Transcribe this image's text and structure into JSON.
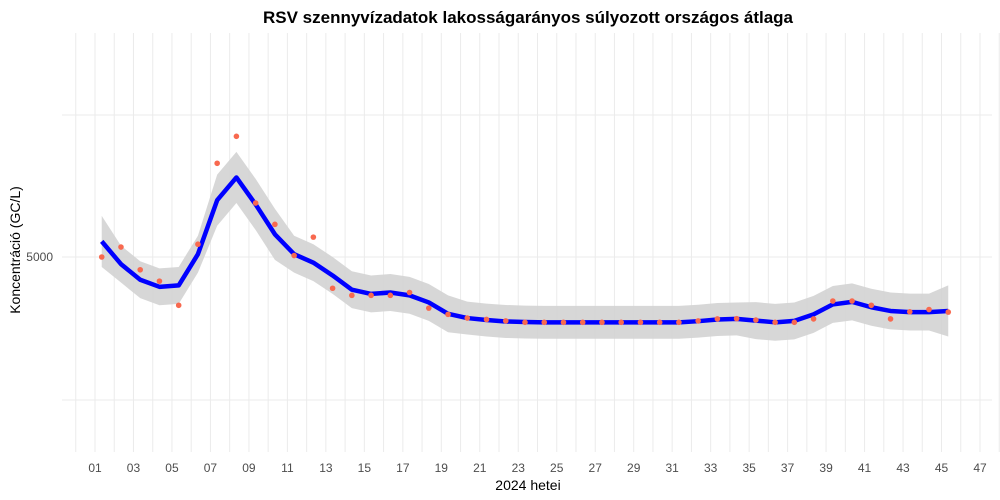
{
  "chart_data": {
    "type": "line",
    "title": "RSV szennyvízadatok lakosságarányos súlyozott országos átlaga",
    "xlabel": "2024 hetei",
    "ylabel": "Koncentráció (GC/L)",
    "x_ticks": [
      "01",
      "03",
      "05",
      "07",
      "09",
      "11",
      "13",
      "15",
      "17",
      "19",
      "21",
      "23",
      "25",
      "27",
      "29",
      "31",
      "33",
      "35",
      "37",
      "39",
      "41",
      "43",
      "45",
      "47"
    ],
    "y_ticks": [
      {
        "label": "5000",
        "value": 5000
      }
    ],
    "grid": true,
    "legend": null,
    "colors": {
      "points": "#F8694F",
      "smooth": "#0000FF",
      "ribbon": "#D3D3D3"
    },
    "points": {
      "x": [
        1,
        2,
        3,
        4,
        5,
        6,
        7,
        8,
        9,
        10,
        11,
        12,
        13,
        14,
        15,
        16,
        17,
        18,
        19,
        20,
        21,
        22,
        23,
        24,
        25,
        26,
        27,
        28,
        29,
        30,
        31,
        32,
        33,
        34,
        35,
        36,
        37,
        38,
        39,
        40,
        41,
        42,
        43,
        44,
        45
      ],
      "y": [
        5000,
        5350,
        4550,
        4150,
        3300,
        5450,
        8300,
        9250,
        6900,
        6150,
        5050,
        5700,
        3900,
        3650,
        3650,
        3650,
        3750,
        3200,
        2980,
        2850,
        2800,
        2750,
        2700,
        2700,
        2700,
        2700,
        2700,
        2700,
        2700,
        2700,
        2700,
        2750,
        2820,
        2830,
        2780,
        2700,
        2700,
        2820,
        3450,
        3450,
        3300,
        2820,
        3070,
        3150,
        3060
      ]
    },
    "smooth": {
      "x": [
        1,
        2,
        3,
        4,
        5,
        6,
        7,
        8,
        9,
        10,
        11,
        12,
        13,
        14,
        15,
        16,
        17,
        18,
        19,
        20,
        21,
        22,
        23,
        24,
        25,
        26,
        27,
        28,
        29,
        30,
        31,
        32,
        33,
        34,
        35,
        36,
        37,
        38,
        39,
        40,
        41,
        42,
        43,
        44,
        45
      ],
      "y": [
        5550,
        4750,
        4200,
        3950,
        4000,
        5100,
        7000,
        7800,
        6850,
        5800,
        5100,
        4800,
        4350,
        3850,
        3700,
        3750,
        3650,
        3400,
        3000,
        2850,
        2780,
        2730,
        2710,
        2700,
        2700,
        2700,
        2700,
        2700,
        2700,
        2700,
        2700,
        2740,
        2800,
        2820,
        2760,
        2700,
        2750,
        2980,
        3330,
        3420,
        3230,
        3100,
        3060,
        3060,
        3100
      ]
    },
    "ylim": [
      1650,
      9700
    ],
    "xlim": [
      -0.1,
      48.2
    ]
  }
}
